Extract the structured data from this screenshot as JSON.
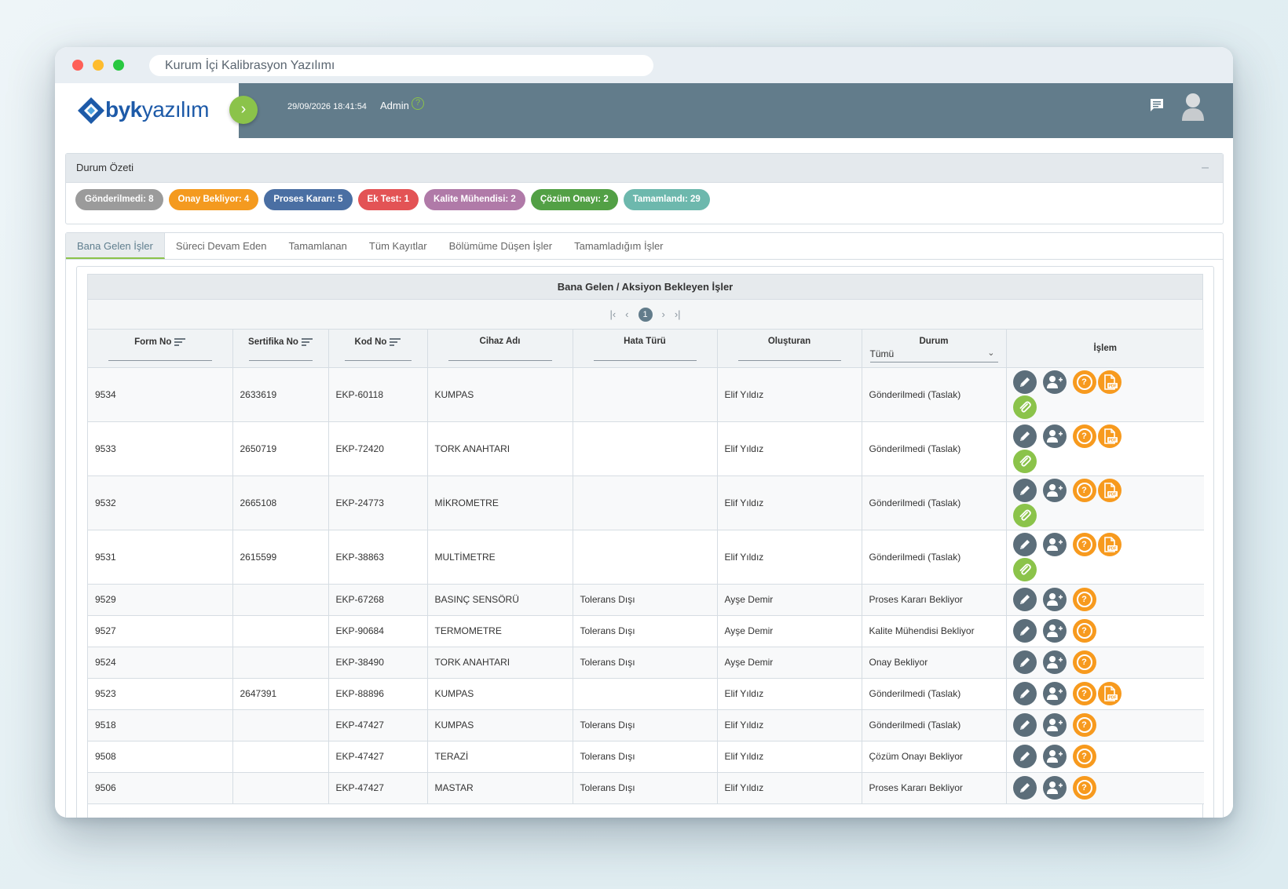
{
  "browser": {
    "url_title": "Kurum İçi Kalibrasyon Yazılımı"
  },
  "header": {
    "logo_bold": "byk",
    "logo_light": "yazılım",
    "datetime": "29/09/2026 18:41:54",
    "user": "Admin",
    "help_glyph": "?",
    "toggle_glyph": "›"
  },
  "summary": {
    "title": "Durum Özeti",
    "collapse_glyph": "–",
    "badges": [
      {
        "label": "Gönderilmedi: 8",
        "color": "#9b9b9b"
      },
      {
        "label": "Onay Bekliyor: 4",
        "color": "#f49a1f"
      },
      {
        "label": "Proses Kararı: 5",
        "color": "#4a6fa3"
      },
      {
        "label": "Ek Test: 1",
        "color": "#e35355"
      },
      {
        "label": "Kalite Mühendisi: 2",
        "color": "#b07aa8"
      },
      {
        "label": "Çözüm Onayı: 2",
        "color": "#52a045"
      },
      {
        "label": "Tamamlandı: 29",
        "color": "#6db8ad"
      }
    ]
  },
  "tabs": [
    "Bana Gelen İşler",
    "Süreci Devam Eden",
    "Tamamlanan",
    "Tüm Kayıtlar",
    "Bölümüme Düşen İşler",
    "Tamamladığım İşler"
  ],
  "grid": {
    "title": "Bana Gelen / Aksiyon Bekleyen İşler",
    "pager": {
      "first": "|‹",
      "prev": "‹",
      "page": "1",
      "next": "›",
      "last": "›|"
    },
    "columns": [
      "Form No",
      "Sertifika No",
      "Kod No",
      "Cihaz Adı",
      "Hata Türü",
      "Oluşturan",
      "Durum",
      "İşlem"
    ],
    "durum_filter": "Tümü",
    "pdf_label": "PDF",
    "help_glyph": "?",
    "rows": [
      {
        "form": "9534",
        "cert": "2633619",
        "kod": "EKP-60118",
        "cihaz": "KUMPAS",
        "hata": "",
        "olusturan": "Elif Yıldız",
        "durum": "Gönderilmedi (Taslak)",
        "actions": [
          "edit",
          "user",
          "help",
          "pdf",
          "clip"
        ]
      },
      {
        "form": "9533",
        "cert": "2650719",
        "kod": "EKP-72420",
        "cihaz": "TORK ANAHTARI",
        "hata": "",
        "olusturan": "Elif Yıldız",
        "durum": "Gönderilmedi (Taslak)",
        "actions": [
          "edit",
          "user",
          "help",
          "pdf",
          "clip"
        ]
      },
      {
        "form": "9532",
        "cert": "2665108",
        "kod": "EKP-24773",
        "cihaz": "MİKROMETRE",
        "hata": "",
        "olusturan": "Elif Yıldız",
        "durum": "Gönderilmedi (Taslak)",
        "actions": [
          "edit",
          "user",
          "help",
          "pdf",
          "clip"
        ]
      },
      {
        "form": "9531",
        "cert": "2615599",
        "kod": "EKP-38863",
        "cihaz": "MULTİMETRE",
        "hata": "",
        "olusturan": "Elif Yıldız",
        "durum": "Gönderilmedi (Taslak)",
        "actions": [
          "edit",
          "user",
          "help",
          "pdf",
          "clip"
        ]
      },
      {
        "form": "9529",
        "cert": "",
        "kod": "EKP-67268",
        "cihaz": "BASINÇ SENSÖRÜ",
        "hata": "Tolerans Dışı",
        "olusturan": "Ayşe Demir",
        "durum": "Proses Kararı Bekliyor",
        "actions": [
          "edit",
          "user",
          "help"
        ]
      },
      {
        "form": "9527",
        "cert": "",
        "kod": "EKP-90684",
        "cihaz": "TERMOMETRE",
        "hata": "Tolerans Dışı",
        "olusturan": "Ayşe Demir",
        "durum": "Kalite Mühendisi Bekliyor",
        "actions": [
          "edit",
          "user",
          "help"
        ]
      },
      {
        "form": "9524",
        "cert": "",
        "kod": "EKP-38490",
        "cihaz": "TORK ANAHTARI",
        "hata": "Tolerans Dışı",
        "olusturan": "Ayşe Demir",
        "durum": "Onay Bekliyor",
        "actions": [
          "edit",
          "user",
          "help"
        ]
      },
      {
        "form": "9523",
        "cert": "2647391",
        "kod": "EKP-88896",
        "cihaz": "KUMPAS",
        "hata": "",
        "olusturan": "Elif Yıldız",
        "durum": "Gönderilmedi (Taslak)",
        "actions": [
          "edit",
          "user",
          "help",
          "pdf"
        ]
      },
      {
        "form": "9518",
        "cert": "",
        "kod": "EKP-47427",
        "cihaz": "KUMPAS",
        "hata": "Tolerans Dışı",
        "olusturan": "Elif Yıldız",
        "durum": "Gönderilmedi (Taslak)",
        "actions": [
          "edit",
          "user",
          "help"
        ]
      },
      {
        "form": "9508",
        "cert": "",
        "kod": "EKP-47427",
        "cihaz": "TERAZİ",
        "hata": "Tolerans Dışı",
        "olusturan": "Elif Yıldız",
        "durum": "Çözüm Onayı Bekliyor",
        "actions": [
          "edit",
          "user",
          "help"
        ]
      },
      {
        "form": "9506",
        "cert": "",
        "kod": "EKP-47427",
        "cihaz": "MASTAR",
        "hata": "Tolerans Dışı",
        "olusturan": "Elif Yıldız",
        "durum": "Proses Kararı Bekliyor",
        "actions": [
          "edit",
          "user",
          "help"
        ]
      }
    ]
  }
}
